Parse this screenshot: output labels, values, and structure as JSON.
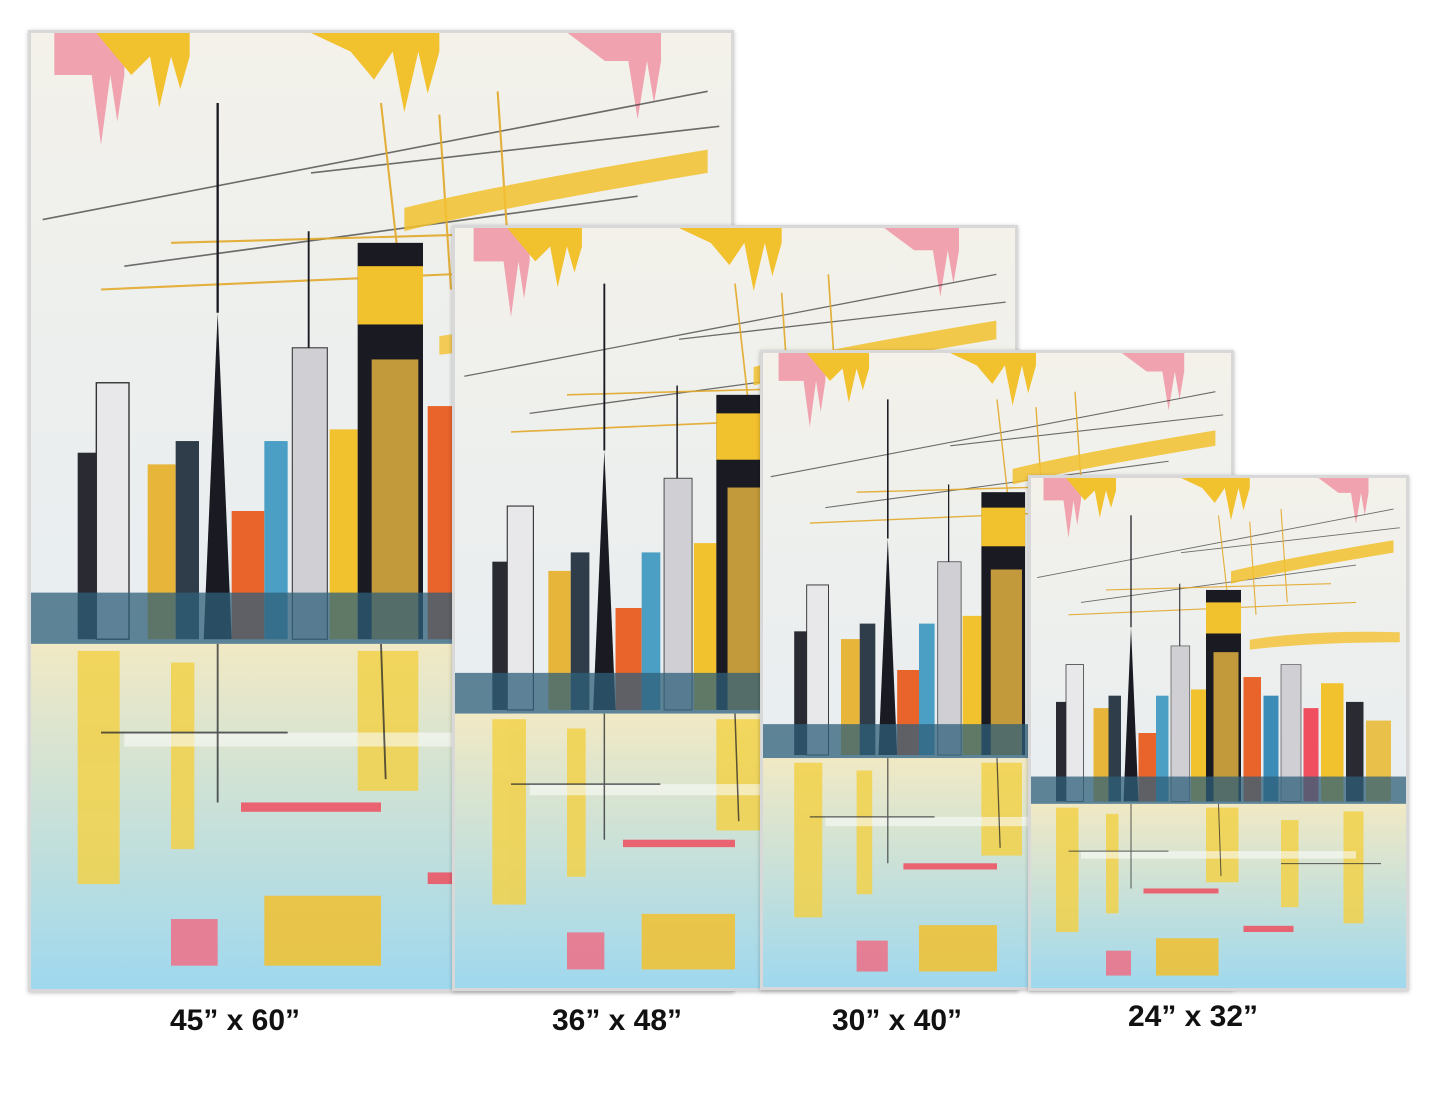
{
  "product": {
    "artwork_name": "abstract-city-skyline-painting",
    "sizes": [
      {
        "label": "45” x 60”"
      },
      {
        "label": "36” x 48”"
      },
      {
        "label": "30” x 40”"
      },
      {
        "label": "24” x 32”"
      }
    ]
  },
  "colors": {
    "sky": "#eef0ef",
    "yellow": "#f2c12e",
    "cyan": "#8fd3ec",
    "pink": "#ef6f86",
    "black": "#1a1a22",
    "orange": "#e9642b",
    "frame": "#d8d8d8"
  }
}
